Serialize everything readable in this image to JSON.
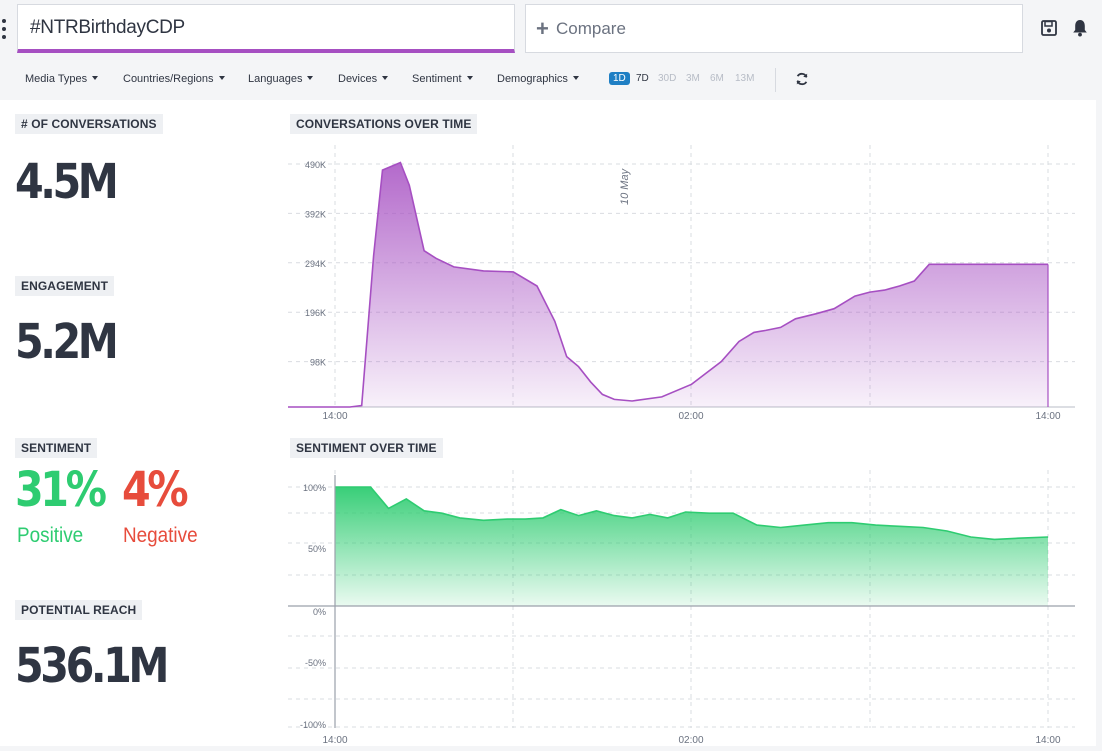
{
  "search": {
    "query": "#NTRBirthdayCDP"
  },
  "compare": {
    "label": "Compare"
  },
  "filters": [
    "Media Types",
    "Countries/Regions",
    "Languages",
    "Devices",
    "Sentiment",
    "Demographics"
  ],
  "ranges": {
    "options": [
      "1D",
      "7D",
      "30D",
      "3M",
      "6M",
      "13M"
    ],
    "active": "1D"
  },
  "metrics": {
    "conversations": {
      "label": "# OF CONVERSATIONS",
      "value": "4.5M"
    },
    "engagement": {
      "label": "ENGAGEMENT",
      "value": "5.2M"
    },
    "sentiment": {
      "label": "SENTIMENT",
      "positive_value": "31%",
      "positive_label": "Positive",
      "negative_value": "4%",
      "negative_label": "Negative"
    },
    "reach": {
      "label": "POTENTIAL REACH",
      "value": "536.1M"
    }
  },
  "colors": {
    "accent": "#a64fc2",
    "positive": "#2ecc71",
    "negative": "#e74c3c",
    "active_range": "#1f7fc4",
    "text": "#2f3542"
  },
  "chart_data": [
    {
      "type": "area",
      "title": "CONVERSATIONS OVER TIME",
      "x_tick_labels": [
        "14:00",
        "02:00",
        "14:00"
      ],
      "annotation": "10 May",
      "y_ticks": [
        98000,
        196000,
        294000,
        392000,
        490000
      ],
      "y_tick_labels": [
        "98K",
        "196K",
        "294K",
        "392K",
        "490K"
      ],
      "ylim": [
        0,
        490000
      ],
      "x_hours": [
        0,
        0.5,
        0.9,
        1.3,
        1.6,
        2.2,
        2.5,
        3.0,
        3.4,
        4.0,
        5.0,
        6.0,
        6.8,
        7.4,
        7.8,
        8.2,
        8.6,
        9.0,
        9.4,
        10.0,
        11.0,
        12.0,
        13.0,
        13.6,
        14.1,
        14.5,
        15.0,
        15.5,
        16.2,
        16.8,
        17.5,
        18.0,
        18.5,
        19.0,
        19.5,
        20.0,
        20.5,
        21.0,
        21.5,
        22.0,
        22.5,
        23.0,
        23.5,
        24.0
      ],
      "values": [
        0,
        0,
        3000,
        300000,
        470000,
        485000,
        440000,
        310000,
        295000,
        278000,
        270000,
        268000,
        240000,
        170000,
        100000,
        80000,
        50000,
        25000,
        15000,
        12000,
        20000,
        45000,
        90000,
        130000,
        148000,
        152000,
        158000,
        175000,
        185000,
        195000,
        220000,
        228000,
        232000,
        240000,
        250000,
        283000,
        283000,
        283000,
        283000,
        283000,
        283000,
        283000,
        283000,
        283000
      ],
      "series_end_hour": 24,
      "grid": true
    },
    {
      "type": "area",
      "title": "SENTIMENT OVER TIME",
      "x_tick_labels": [
        "14:00",
        "02:00",
        "14:00"
      ],
      "y_tick_labels": [
        "100%",
        "50%",
        "0%",
        "-50%",
        "-100%"
      ],
      "y_ticks": [
        100,
        50,
        0,
        -50,
        -100
      ],
      "ylim": [
        -100,
        100
      ],
      "x_hours": [
        0,
        1.2,
        1.8,
        2.4,
        3.0,
        3.6,
        4.2,
        5.0,
        5.8,
        6.4,
        7.0,
        7.6,
        8.2,
        8.8,
        9.4,
        10.0,
        10.6,
        11.2,
        11.8,
        12.6,
        13.4,
        14.2,
        15.0,
        15.8,
        16.6,
        17.4,
        18.2,
        19.0,
        19.8,
        20.6,
        21.4,
        22.2,
        23.0,
        24.0
      ],
      "values": [
        100,
        100,
        82,
        90,
        80,
        78,
        74,
        72,
        73,
        73,
        74,
        81,
        76,
        80,
        76,
        74,
        77,
        74,
        79,
        78,
        78,
        68,
        66,
        68,
        70,
        70,
        68,
        67,
        66,
        63,
        58,
        56,
        57,
        58
      ],
      "grid": true
    }
  ]
}
